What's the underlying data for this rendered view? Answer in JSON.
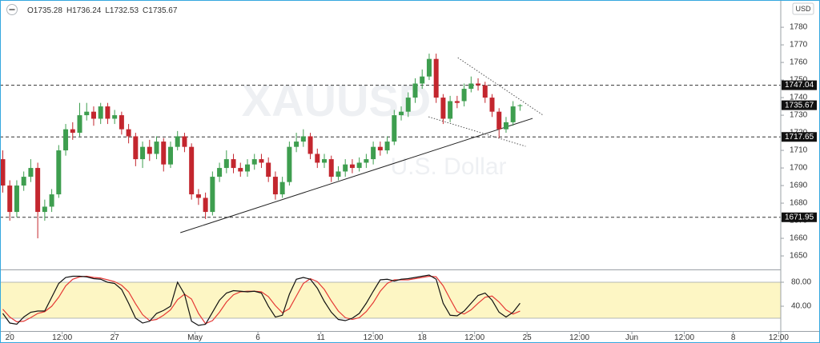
{
  "header": {
    "ohlc_labels": [
      "O",
      "H",
      "L",
      "C"
    ]
  },
  "currency": "USD",
  "watermark": {
    "symbol": "XAUUSD",
    "description": "U.S. Dollar"
  },
  "chart_data": [
    {
      "type": "candlestick",
      "open": [
        1705,
        1690,
        1675,
        1690,
        1695,
        1700,
        1675,
        1678,
        1685,
        1710,
        1722,
        1720,
        1730,
        1732,
        1728,
        1735,
        1728,
        1730,
        1722,
        1718,
        1705,
        1712,
        1708,
        1715,
        1702,
        1712,
        1718,
        1712,
        1685,
        1683,
        1675,
        1695,
        1700,
        1705,
        1700,
        1698,
        1702,
        1705,
        1703,
        1695,
        1685,
        1692,
        1712,
        1715,
        1718,
        1708,
        1703,
        1705,
        1695,
        1698,
        1702,
        1700,
        1703,
        1705,
        1712,
        1710,
        1715,
        1730,
        1732,
        1740,
        1748,
        1752,
        1762,
        1740,
        1728,
        1738,
        1738,
        1745,
        1748,
        1747,
        1740,
        1732,
        1722,
        1726,
        1735.28
      ],
      "high": [
        1710,
        1693,
        1693,
        1698,
        1705,
        1703,
        1682,
        1688,
        1713,
        1725,
        1726,
        1737,
        1737,
        1735,
        1737,
        1737,
        1733,
        1732,
        1725,
        1720,
        1715,
        1716,
        1718,
        1717,
        1715,
        1721,
        1720,
        1714,
        1688,
        1686,
        1698,
        1703,
        1710,
        1708,
        1703,
        1705,
        1708,
        1708,
        1706,
        1698,
        1695,
        1715,
        1720,
        1722,
        1720,
        1711,
        1708,
        1707,
        1701,
        1705,
        1705,
        1706,
        1708,
        1715,
        1715,
        1718,
        1733,
        1735,
        1743,
        1751,
        1756,
        1765,
        1765,
        1742,
        1741,
        1741,
        1748,
        1752,
        1751,
        1749,
        1742,
        1734,
        1729,
        1738,
        1736.24
      ],
      "low": [
        1686,
        1670,
        1672,
        1687,
        1692,
        1660,
        1670,
        1675,
        1683,
        1707,
        1716,
        1718,
        1727,
        1724,
        1725,
        1725,
        1725,
        1719,
        1714,
        1701,
        1700,
        1704,
        1705,
        1698,
        1700,
        1710,
        1709,
        1682,
        1679,
        1671,
        1673,
        1692,
        1697,
        1697,
        1695,
        1695,
        1699,
        1700,
        1692,
        1682,
        1683,
        1690,
        1709,
        1712,
        1705,
        1700,
        1700,
        1692,
        1693,
        1695,
        1697,
        1698,
        1700,
        1702,
        1707,
        1708,
        1713,
        1727,
        1729,
        1737,
        1745,
        1750,
        1737,
        1725,
        1726,
        1734,
        1735,
        1743,
        1744,
        1737,
        1729,
        1717,
        1720,
        1724,
        1732.53
      ],
      "close": [
        1690,
        1675,
        1690,
        1695,
        1700,
        1675,
        1678,
        1685,
        1710,
        1722,
        1720,
        1730,
        1732,
        1728,
        1735,
        1728,
        1730,
        1722,
        1718,
        1705,
        1712,
        1708,
        1715,
        1702,
        1712,
        1718,
        1712,
        1685,
        1683,
        1675,
        1695,
        1700,
        1705,
        1700,
        1698,
        1702,
        1705,
        1703,
        1695,
        1685,
        1692,
        1712,
        1715,
        1718,
        1708,
        1703,
        1705,
        1695,
        1698,
        1702,
        1700,
        1703,
        1705,
        1712,
        1710,
        1715,
        1730,
        1732,
        1740,
        1748,
        1752,
        1762,
        1740,
        1728,
        1738,
        1737,
        1745,
        1748,
        1747,
        1740,
        1732,
        1722,
        1726,
        1735,
        1735.67
      ],
      "colors": {
        "up": "#3e9e4f",
        "down": "#c3262e"
      },
      "xlim": [
        -0.4,
        111.3
      ],
      "xticks": [
        {
          "value": 1,
          "label": "20"
        },
        {
          "value": 8.5,
          "label": "12:00"
        },
        {
          "value": 16,
          "label": "27"
        },
        {
          "value": 27.5,
          "label": "May"
        },
        {
          "value": 36.5,
          "label": "6"
        },
        {
          "value": 45.5,
          "label": "11"
        },
        {
          "value": 53,
          "label": "12:00"
        },
        {
          "value": 60,
          "label": "18"
        },
        {
          "value": 67.5,
          "label": "12:00"
        },
        {
          "value": 75,
          "label": "25"
        },
        {
          "value": 82.5,
          "label": "12:00"
        },
        {
          "value": 90,
          "label": "Jun"
        },
        {
          "value": 97.5,
          "label": "12:00"
        },
        {
          "value": 104.5,
          "label": "8"
        },
        {
          "value": 111,
          "label": "12:00"
        }
      ],
      "ylim": [
        1642.3,
        1795.5
      ],
      "yticks": [
        1650,
        1660,
        1670,
        1680,
        1690,
        1700,
        1710,
        1720,
        1730,
        1740,
        1750,
        1760,
        1770,
        1780
      ],
      "levels": [
        1747.04,
        1717.65,
        1671.95
      ],
      "trendlines": [
        {
          "style": "solid",
          "x": [
            25.4,
            75.8
          ],
          "y": [
            1663.2,
            1728.2
          ]
        },
        {
          "style": "dotted",
          "x": [
            65.1,
            77.3
          ],
          "y": [
            1762.7,
            1730
          ]
        },
        {
          "style": "dotted",
          "x": [
            60.9,
            74.8
          ],
          "y": [
            1729.1,
            1712.3
          ]
        }
      ]
    },
    {
      "type": "line",
      "series": [
        {
          "color": "#111111",
          "values": [
            28,
            12,
            10,
            22,
            30,
            32,
            32,
            55,
            78,
            88,
            90,
            90,
            89,
            86,
            85,
            80,
            78,
            68,
            45,
            20,
            12,
            15,
            28,
            33,
            40,
            80,
            60,
            15,
            8,
            10,
            30,
            50,
            62,
            66,
            65,
            64,
            65,
            62,
            40,
            22,
            25,
            60,
            85,
            88,
            85,
            70,
            48,
            30,
            18,
            16,
            20,
            28,
            45,
            65,
            84,
            85,
            82,
            85,
            86,
            88,
            90,
            92,
            85,
            45,
            25,
            24,
            32,
            45,
            58,
            62,
            50,
            30,
            22,
            30,
            45
          ]
        },
        {
          "color": "#e53935",
          "values": [
            35,
            22,
            14,
            15,
            21,
            28,
            31,
            40,
            55,
            74,
            85,
            89,
            90,
            88,
            87,
            84,
            81,
            75,
            64,
            44,
            26,
            16,
            18,
            25,
            34,
            51,
            60,
            52,
            28,
            11,
            16,
            30,
            47,
            59,
            64,
            65,
            65,
            64,
            56,
            41,
            29,
            36,
            57,
            78,
            86,
            81,
            68,
            49,
            32,
            21,
            18,
            21,
            31,
            46,
            65,
            78,
            84,
            84,
            84,
            86,
            88,
            90,
            89,
            74,
            52,
            31,
            27,
            34,
            45,
            55,
            57,
            47,
            34,
            27,
            32
          ]
        }
      ],
      "ylim": [
        -1.3,
        100
      ],
      "yticks": [
        {
          "value": 80,
          "label": "80.00"
        },
        {
          "value": 40,
          "label": "40.00"
        }
      ],
      "band": [
        20,
        80
      ],
      "band_color": "#fdf6c4"
    }
  ]
}
